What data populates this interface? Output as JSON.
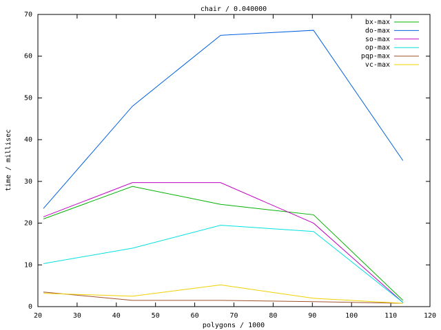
{
  "chart_data": {
    "type": "line",
    "title": "chair / 0.040000",
    "x_label": "polygons / 1000",
    "y_label": "time / millisec",
    "x": [
      21.4,
      44.1,
      66.6,
      90.3,
      113.1
    ],
    "series": [
      {
        "name": "bx-max",
        "color": "#00b000",
        "values": [
          21,
          28.8,
          24.5,
          22,
          1.5
        ]
      },
      {
        "name": "do-max",
        "color": "#0060e0",
        "values": [
          23.5,
          48,
          65,
          66.2,
          35
        ]
      },
      {
        "name": "so-max",
        "color": "#c000c0",
        "values": [
          21.5,
          29.7,
          29.7,
          20,
          1
        ]
      },
      {
        "name": "op-max",
        "color": "#00e0e0",
        "values": [
          10.3,
          14,
          19.5,
          18,
          1
        ]
      },
      {
        "name": "pqp-max",
        "color": "#a0522d",
        "values": [
          3.5,
          1.5,
          1.5,
          1.2,
          0.8
        ]
      },
      {
        "name": "vc-max",
        "color": "#f0d000",
        "values": [
          3.2,
          2.5,
          5.2,
          2,
          0.8
        ]
      }
    ],
    "xlim": [
      20,
      120
    ],
    "xticks": [
      20,
      30,
      40,
      50,
      60,
      70,
      80,
      90,
      100,
      110,
      120
    ],
    "ylim": [
      0,
      70
    ],
    "yticks": [
      0,
      10,
      20,
      30,
      40,
      50,
      60,
      70
    ],
    "legend": "top-right"
  }
}
